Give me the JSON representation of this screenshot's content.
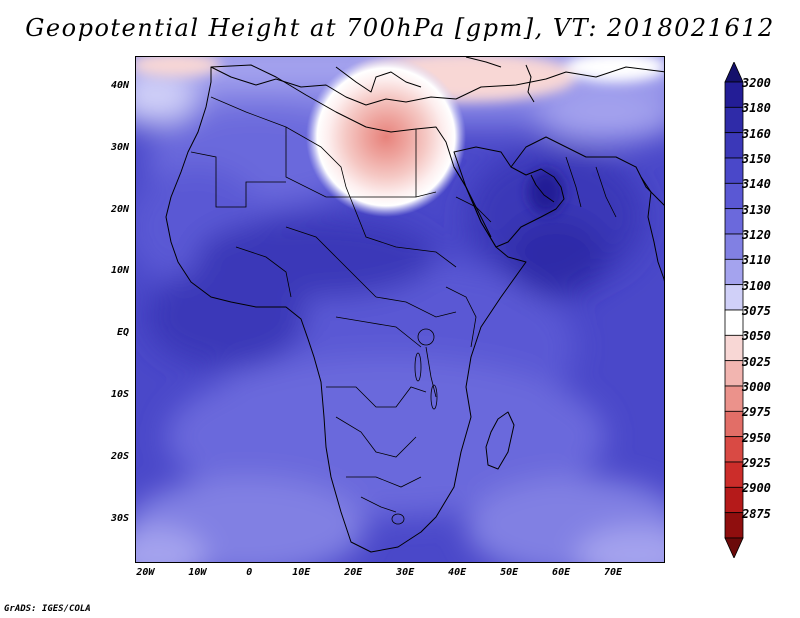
{
  "title": "Geopotential Height at 700hPa [gpm], VT: 2018021612",
  "credit": "GrADS: IGES/COLA",
  "map": {
    "projection": "latlon",
    "lon_range": [
      -22,
      80
    ],
    "lat_range": [
      -37,
      45
    ],
    "lat_ticks": [
      {
        "value": 40,
        "label": "40N"
      },
      {
        "value": 30,
        "label": "30N"
      },
      {
        "value": 20,
        "label": "20N"
      },
      {
        "value": 10,
        "label": "10N"
      },
      {
        "value": 0,
        "label": "EQ"
      },
      {
        "value": -10,
        "label": "10S"
      },
      {
        "value": -20,
        "label": "20S"
      },
      {
        "value": -30,
        "label": "30S"
      }
    ],
    "lon_ticks": [
      {
        "value": -20,
        "label": "20W"
      },
      {
        "value": -10,
        "label": "10W"
      },
      {
        "value": 0,
        "label": "0"
      },
      {
        "value": 10,
        "label": "10E"
      },
      {
        "value": 20,
        "label": "20E"
      },
      {
        "value": 30,
        "label": "30E"
      },
      {
        "value": 40,
        "label": "40E"
      },
      {
        "value": 50,
        "label": "50E"
      },
      {
        "value": 60,
        "label": "60E"
      },
      {
        "value": 70,
        "label": "70E"
      }
    ],
    "features": [
      {
        "name": "low-center-eastern-mediterranean",
        "lon": 26,
        "lat": 32,
        "value": 2990
      },
      {
        "name": "high-center-arabian-peninsula",
        "lon": 55,
        "lat": 22,
        "value": 3175
      }
    ]
  },
  "colorbar": {
    "levels": [
      "3200",
      "3180",
      "3160",
      "3150",
      "3140",
      "3130",
      "3120",
      "3110",
      "3100",
      "3075",
      "3050",
      "3025",
      "3000",
      "2975",
      "2950",
      "2925",
      "2900",
      "2875"
    ],
    "colors": [
      "#231d96",
      "#2f2ba8",
      "#3b38b8",
      "#4a48c9",
      "#5a58d4",
      "#6b69dc",
      "#8180e3",
      "#a4a3ee",
      "#d0d0f8",
      "#ffffff",
      "#f8d7d5",
      "#f2b5b0",
      "#eb928b",
      "#e26e67",
      "#d94a44",
      "#cc2d2a",
      "#b51a1a",
      "#8f0e0e"
    ],
    "top_color": "#14106b",
    "bottom_color": "#6b0a0a"
  }
}
